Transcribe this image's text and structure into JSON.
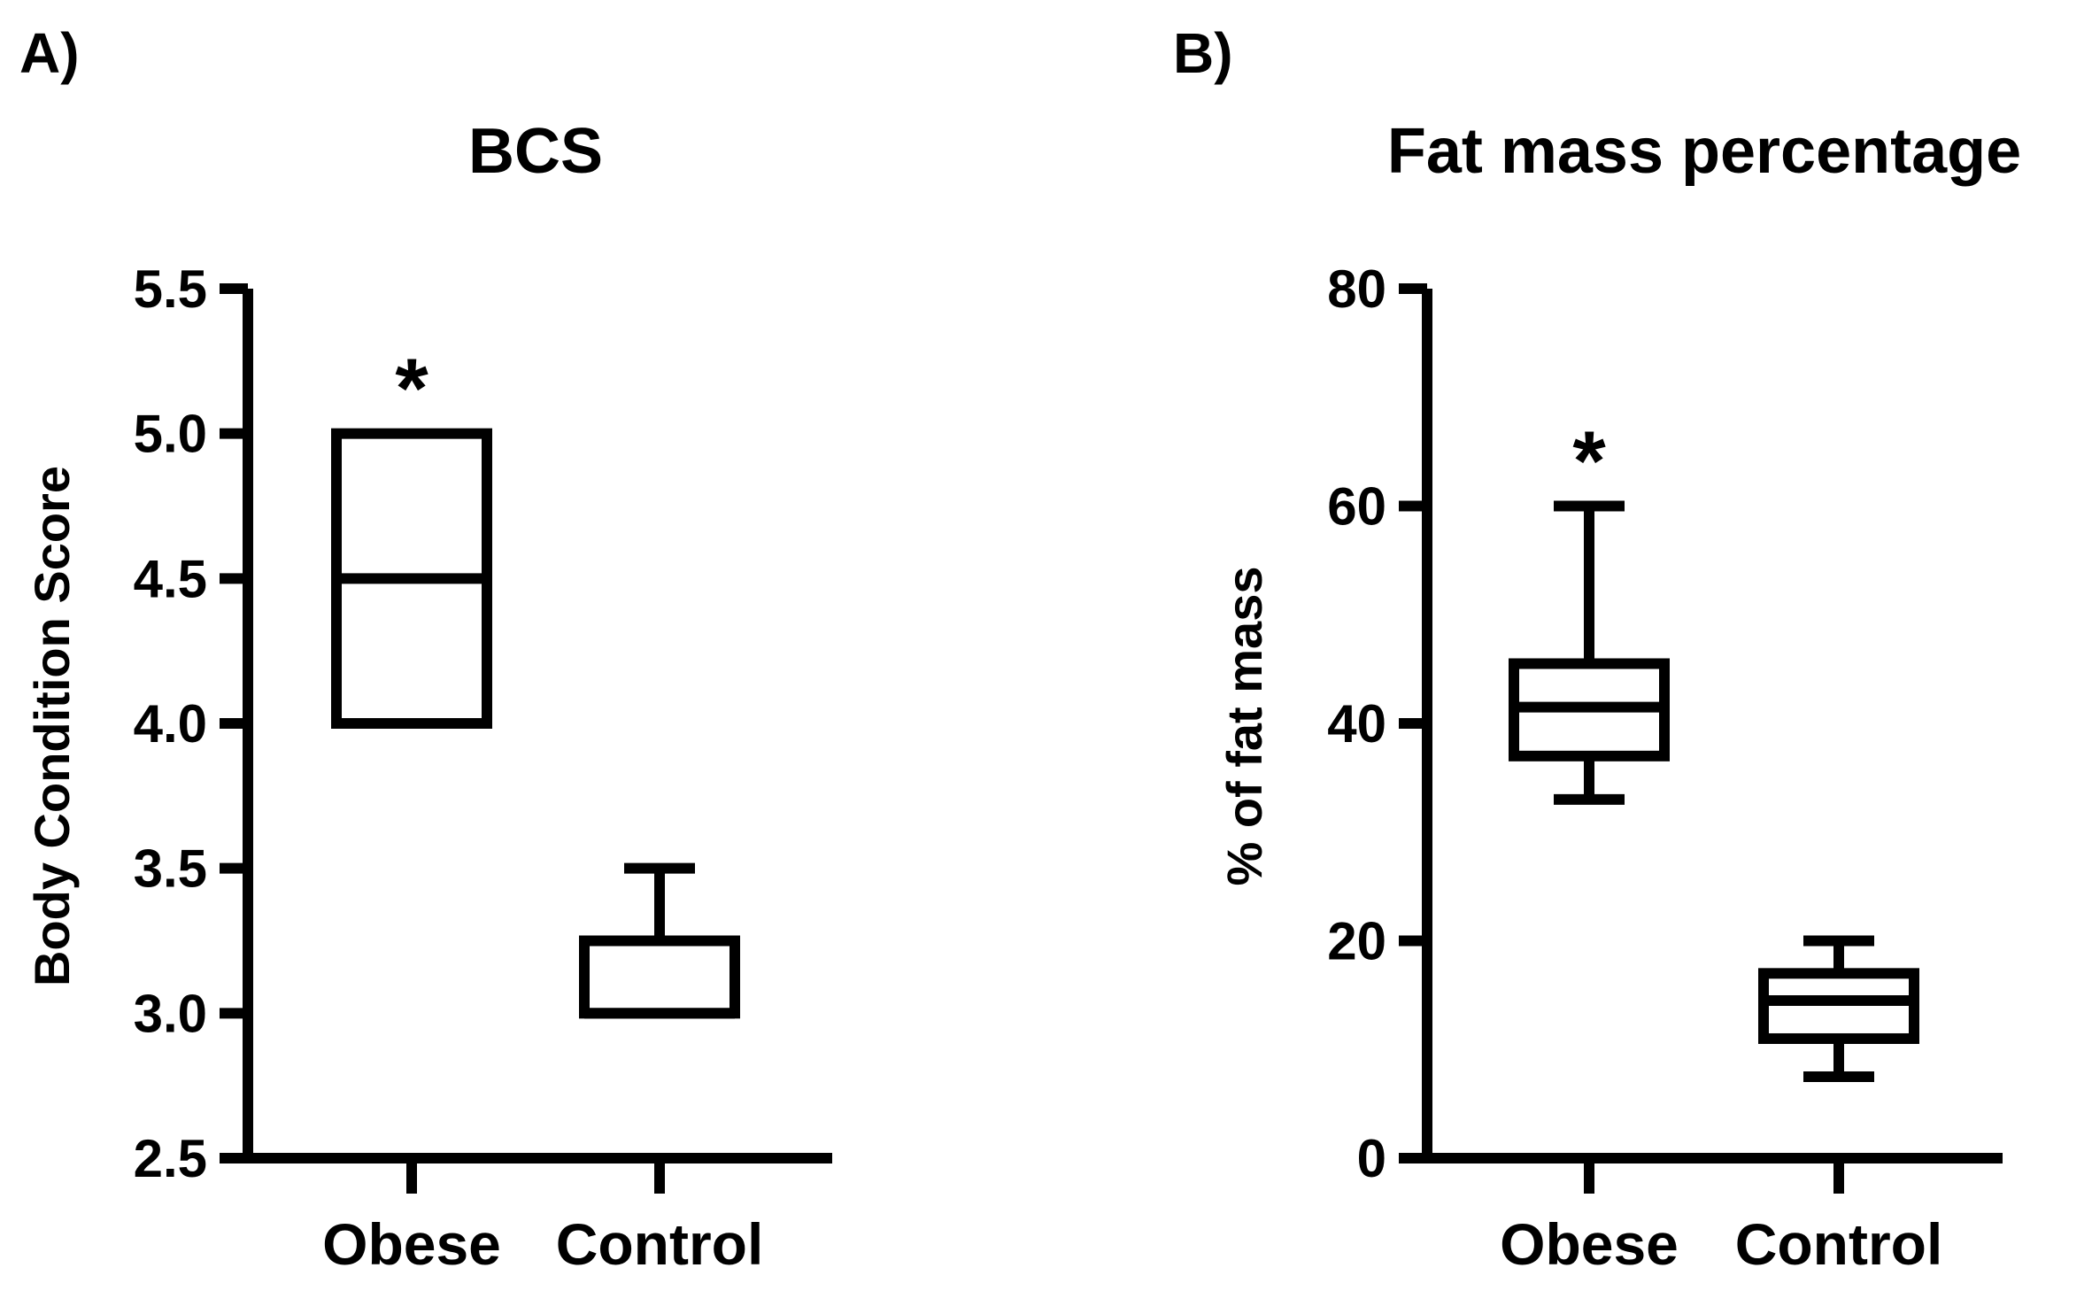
{
  "chart_data": [
    {
      "panel_label": "A)",
      "type": "boxplot",
      "title": "BCS",
      "xlabel": "",
      "ylabel": "Body Condition Score",
      "ylim": [
        2.5,
        5.5
      ],
      "yticks": [
        2.5,
        3.0,
        3.5,
        4.0,
        4.5,
        5.0,
        5.5
      ],
      "ytick_labels": [
        "2.5",
        "3.0",
        "3.5",
        "4.0",
        "4.5",
        "5.0",
        "5.5"
      ],
      "categories": [
        "Obese",
        "Control"
      ],
      "boxes": [
        {
          "category": "Obese",
          "min": 4.0,
          "q1": 4.0,
          "median": 4.5,
          "q3": 5.0,
          "max": 5.0,
          "annotation": "*"
        },
        {
          "category": "Control",
          "min": 3.0,
          "q1": 3.0,
          "median": 3.0,
          "q3": 3.25,
          "max": 3.5,
          "annotation": ""
        }
      ]
    },
    {
      "panel_label": "B)",
      "type": "boxplot",
      "title": "Fat mass percentage",
      "xlabel": "",
      "ylabel": "% of fat mass",
      "ylim": [
        0,
        80
      ],
      "yticks": [
        0,
        20,
        40,
        60,
        80
      ],
      "ytick_labels": [
        "0",
        "20",
        "40",
        "60",
        "80"
      ],
      "categories": [
        "Obese",
        "Control"
      ],
      "boxes": [
        {
          "category": "Obese",
          "min": 33,
          "q1": 37,
          "median": 41.5,
          "q3": 45.5,
          "max": 60,
          "annotation": "*"
        },
        {
          "category": "Control",
          "min": 7.5,
          "q1": 11,
          "median": 14.5,
          "q3": 17,
          "max": 20,
          "annotation": ""
        }
      ]
    }
  ]
}
